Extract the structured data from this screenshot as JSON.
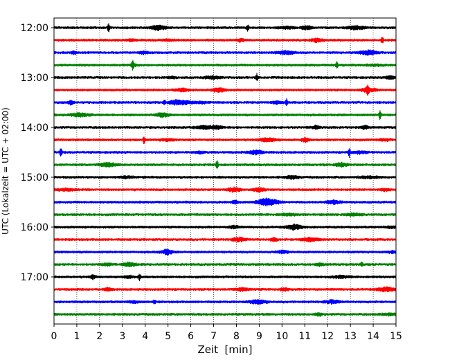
{
  "chart_data": {
    "type": "line",
    "title": "",
    "xlabel": "Zeit  [min]",
    "ylabel": "UTC (Lokalzeit = UTC + 02:00)",
    "xlim": [
      0,
      15
    ],
    "x_ticks": [
      "0",
      "1",
      "2",
      "3",
      "4",
      "5",
      "6",
      "7",
      "8",
      "9",
      "10",
      "11",
      "12",
      "13",
      "14",
      "15"
    ],
    "y_ticks": [
      "12:00",
      "13:00",
      "14:00",
      "15:00",
      "16:00",
      "17:00"
    ],
    "grid": "vertical dotted",
    "trace_interval_minutes": 15,
    "color_cycle": [
      "#000000",
      "#ff0000",
      "#0000ff",
      "#008000"
    ],
    "series": [
      {
        "start": "12:00",
        "color": "#000000"
      },
      {
        "start": "12:15",
        "color": "#ff0000"
      },
      {
        "start": "12:30",
        "color": "#0000ff"
      },
      {
        "start": "12:45",
        "color": "#008000"
      },
      {
        "start": "13:00",
        "color": "#000000"
      },
      {
        "start": "13:15",
        "color": "#ff0000"
      },
      {
        "start": "13:30",
        "color": "#0000ff"
      },
      {
        "start": "13:45",
        "color": "#008000"
      },
      {
        "start": "14:00",
        "color": "#000000"
      },
      {
        "start": "14:15",
        "color": "#ff0000"
      },
      {
        "start": "14:30",
        "color": "#0000ff"
      },
      {
        "start": "14:45",
        "color": "#008000"
      },
      {
        "start": "15:00",
        "color": "#000000"
      },
      {
        "start": "15:15",
        "color": "#ff0000"
      },
      {
        "start": "15:30",
        "color": "#0000ff"
      },
      {
        "start": "15:45",
        "color": "#008000"
      },
      {
        "start": "16:00",
        "color": "#000000"
      },
      {
        "start": "16:15",
        "color": "#ff0000"
      },
      {
        "start": "16:30",
        "color": "#0000ff"
      },
      {
        "start": "16:45",
        "color": "#008000"
      },
      {
        "start": "17:00",
        "color": "#000000"
      },
      {
        "start": "17:15",
        "color": "#ff0000"
      },
      {
        "start": "17:30",
        "color": "#0000ff"
      },
      {
        "start": "17:45",
        "color": "#008000"
      }
    ],
    "spikes": [
      {
        "trace": "12:00",
        "minute": 2.4,
        "amplitude": 1.0
      },
      {
        "trace": "12:00",
        "minute": 8.5,
        "amplitude": 0.8
      },
      {
        "trace": "12:15",
        "minute": 14.4,
        "amplitude": 0.8
      },
      {
        "trace": "12:45",
        "minute": 3.45,
        "amplitude": 1.0
      },
      {
        "trace": "12:45",
        "minute": 12.4,
        "amplitude": 0.8
      },
      {
        "trace": "13:00",
        "minute": 8.9,
        "amplitude": 0.9
      },
      {
        "trace": "13:15",
        "minute": 13.75,
        "amplitude": 1.0
      },
      {
        "trace": "13:30",
        "minute": 4.85,
        "amplitude": 0.6
      },
      {
        "trace": "13:30",
        "minute": 10.2,
        "amplitude": 0.8
      },
      {
        "trace": "13:45",
        "minute": 14.3,
        "amplitude": 1.1
      },
      {
        "trace": "14:15",
        "minute": 3.95,
        "amplitude": 0.9
      },
      {
        "trace": "14:30",
        "minute": 0.3,
        "amplitude": 1.1
      },
      {
        "trace": "14:30",
        "minute": 12.95,
        "amplitude": 1.0
      },
      {
        "trace": "14:45",
        "minute": 7.15,
        "amplitude": 1.1
      },
      {
        "trace": "16:45",
        "minute": 13.5,
        "amplitude": 0.6
      },
      {
        "trace": "17:00",
        "minute": 3.75,
        "amplitude": 0.7
      },
      {
        "trace": "17:30",
        "minute": 4.4,
        "amplitude": 0.5
      }
    ]
  }
}
